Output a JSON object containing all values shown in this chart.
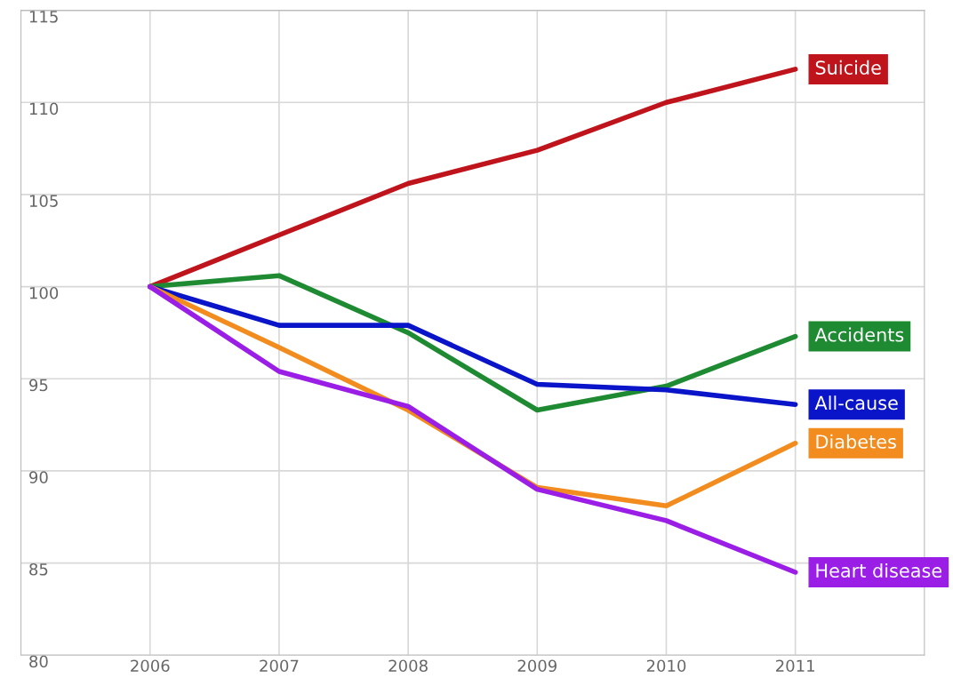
{
  "chart_data": {
    "type": "line",
    "x": [
      2006,
      2007,
      2008,
      2009,
      2010,
      2011
    ],
    "series": [
      {
        "name": "Suicide",
        "color": "#c0141c",
        "values": [
          100,
          102.8,
          105.6,
          107.4,
          110.0,
          111.8
        ]
      },
      {
        "name": "Accidents",
        "color": "#1e8a32",
        "values": [
          100,
          100.6,
          97.5,
          93.3,
          94.6,
          97.3
        ]
      },
      {
        "name": "All-cause",
        "color": "#0a14c8",
        "values": [
          100,
          97.9,
          97.9,
          94.7,
          94.4,
          93.6
        ]
      },
      {
        "name": "Diabetes",
        "color": "#f28c1e",
        "values": [
          100,
          96.7,
          93.3,
          89.1,
          88.1,
          91.5
        ]
      },
      {
        "name": "Heart disease",
        "color": "#9a1ee6",
        "values": [
          100,
          95.4,
          93.5,
          89.0,
          87.3,
          84.5
        ]
      }
    ],
    "xlim": [
      2005,
      2012
    ],
    "xticks": [
      2006,
      2007,
      2008,
      2009,
      2010,
      2011
    ],
    "ylim": [
      80,
      115
    ],
    "yticks": [
      80,
      85,
      90,
      95,
      100,
      105,
      110,
      115
    ],
    "grid": true,
    "legend": false,
    "marker": "none",
    "line_style": "solid"
  }
}
